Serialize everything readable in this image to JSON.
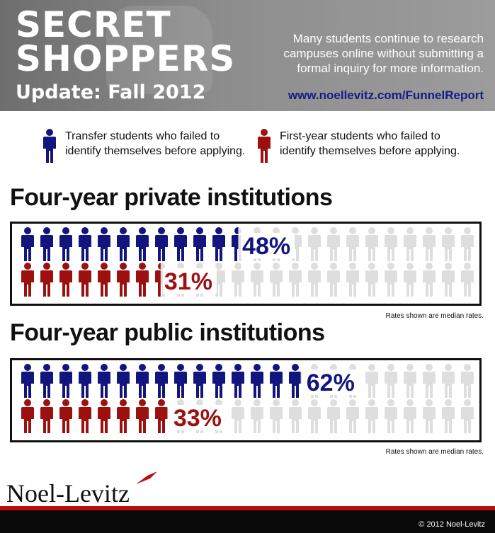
{
  "header": {
    "title_line1": "Secret",
    "title_line2": "Shoppers",
    "subtitle": "Update: Fall 2012",
    "intro": "Many students continue to research campuses online without submitting a formal inquiry for more information.",
    "url": "www.noellevitz.com/FunnelReport"
  },
  "legend": [
    {
      "label": "Transfer students who failed to identify themselves before applying.",
      "color": "#11157d"
    },
    {
      "label": "First-year students who failed to identify themselves before applying.",
      "color": "#9c1010"
    }
  ],
  "colors": {
    "transfer": "#11157d",
    "first_year": "#9c1010",
    "empty": "#dedede"
  },
  "chart_data": [
    {
      "type": "bar",
      "title": "Four-year private institutions",
      "categories": [
        "Transfer students",
        "First-year students"
      ],
      "values": [
        48,
        31
      ],
      "labels": [
        "48%",
        "31%"
      ],
      "ylim": [
        0,
        100
      ],
      "note": "Rates shown are median rates."
    },
    {
      "type": "bar",
      "title": "Four-year public institutions",
      "categories": [
        "Transfer students",
        "First-year students"
      ],
      "values": [
        62,
        33
      ],
      "labels": [
        "62%",
        "33%"
      ],
      "ylim": [
        0,
        100
      ],
      "note": "Rates shown are median rates."
    }
  ],
  "footer": {
    "logo": "Noel-Levitz",
    "copyright": "© 2012 Noel-Levitz"
  }
}
